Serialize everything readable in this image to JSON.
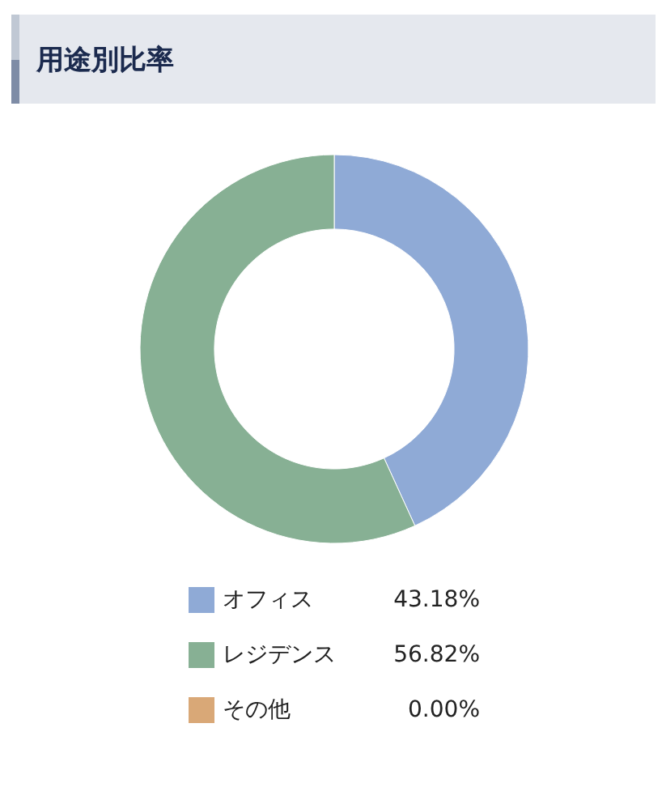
{
  "chart_data": {
    "type": "donut",
    "title": "用途別比率",
    "categories": [
      "オフィス",
      "レジデンス",
      "その他"
    ],
    "values": [
      43.18,
      56.82,
      0
    ],
    "colors": [
      "#8faad6",
      "#87b094",
      "#d9a877"
    ],
    "value_labels": [
      "43.18%",
      "56.82%",
      "0.00%"
    ],
    "legend": "bottom"
  }
}
